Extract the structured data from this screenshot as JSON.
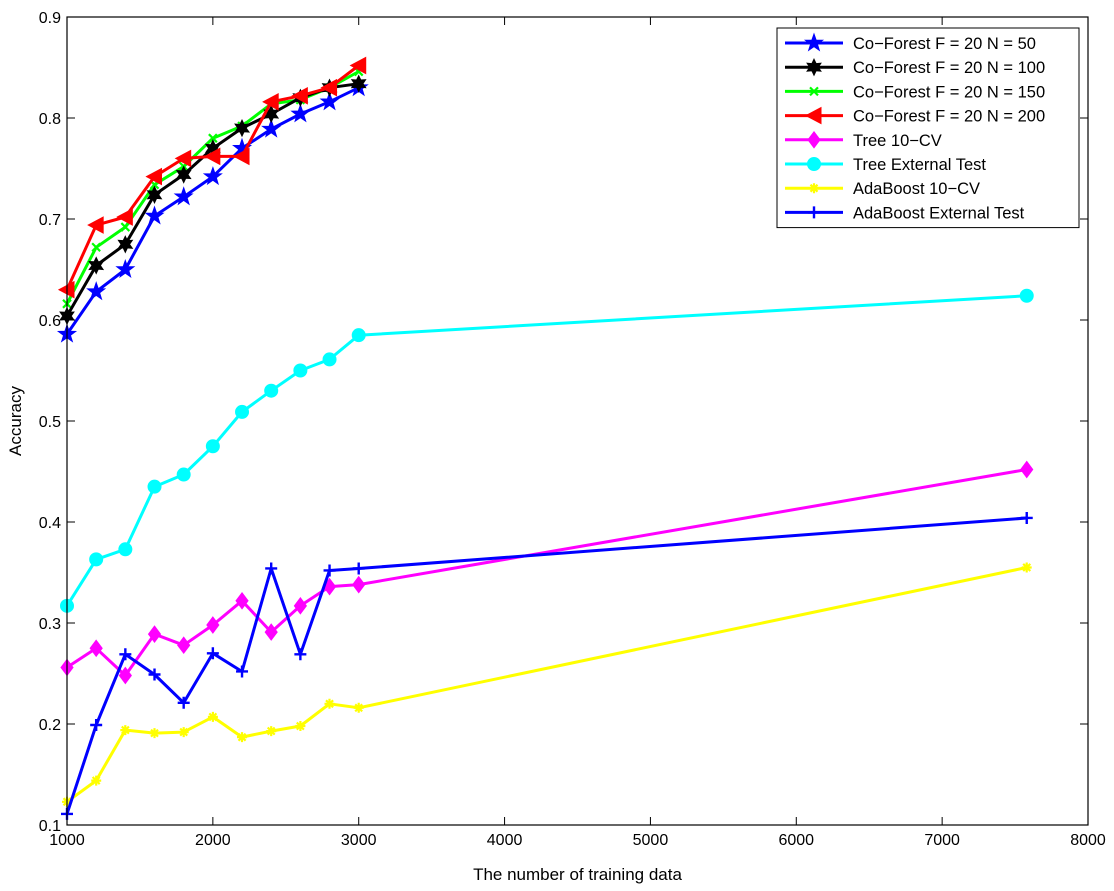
{
  "chart_data": {
    "type": "line",
    "title": "",
    "xlabel": "The number of training data",
    "ylabel": "Accuracy",
    "xlim": [
      1000,
      8000
    ],
    "ylim": [
      0.1,
      0.9
    ],
    "xticks": [
      1000,
      2000,
      3000,
      4000,
      5000,
      6000,
      7000,
      8000
    ],
    "yticks": [
      0.1,
      0.2,
      0.3,
      0.4,
      0.5,
      0.6,
      0.7,
      0.8,
      0.9
    ],
    "grid": false,
    "legend_position": "top-right",
    "series": [
      {
        "name": "Co−Forest F = 20 N = 50",
        "color": "#0000ff",
        "marker": "pentagram",
        "x": [
          1000,
          1200,
          1400,
          1600,
          1800,
          2000,
          2200,
          2400,
          2600,
          2800,
          3000
        ],
        "y": [
          0.586,
          0.628,
          0.65,
          0.703,
          0.722,
          0.742,
          0.77,
          0.789,
          0.804,
          0.816,
          0.83
        ]
      },
      {
        "name": "Co−Forest F = 20 N = 100",
        "color": "#000000",
        "marker": "hexagram",
        "x": [
          1000,
          1200,
          1400,
          1600,
          1800,
          2000,
          2200,
          2400,
          2600,
          2800,
          3000
        ],
        "y": [
          0.604,
          0.654,
          0.675,
          0.724,
          0.744,
          0.77,
          0.79,
          0.804,
          0.82,
          0.83,
          0.834
        ]
      },
      {
        "name": "Co−Forest F = 20 N = 150",
        "color": "#00ff00",
        "marker": "x",
        "x": [
          1000,
          1200,
          1400,
          1600,
          1800,
          2000,
          2200,
          2400,
          2600,
          2800,
          3000
        ],
        "y": [
          0.616,
          0.672,
          0.692,
          0.734,
          0.752,
          0.78,
          0.792,
          0.814,
          0.818,
          0.83,
          0.846
        ]
      },
      {
        "name": "Co−Forest F = 20 N = 200",
        "color": "#ff0000",
        "marker": "triangle-left",
        "x": [
          1000,
          1200,
          1400,
          1600,
          1800,
          2000,
          2200,
          2400,
          2600,
          2800,
          3000
        ],
        "y": [
          0.63,
          0.694,
          0.702,
          0.742,
          0.76,
          0.762,
          0.762,
          0.816,
          0.822,
          0.83,
          0.852
        ]
      },
      {
        "name": "Tree 10−CV",
        "color": "#ff00ff",
        "marker": "diamond",
        "x": [
          1000,
          1200,
          1400,
          1600,
          1800,
          2000,
          2200,
          2400,
          2600,
          2800,
          3000,
          7580
        ],
        "y": [
          0.256,
          0.275,
          0.248,
          0.289,
          0.278,
          0.298,
          0.322,
          0.291,
          0.317,
          0.336,
          0.338,
          0.452
        ]
      },
      {
        "name": "Tree External Test",
        "color": "#00ffff",
        "marker": "circle",
        "x": [
          1000,
          1200,
          1400,
          1600,
          1800,
          2000,
          2200,
          2400,
          2600,
          2800,
          3000,
          7580
        ],
        "y": [
          0.317,
          0.363,
          0.373,
          0.435,
          0.447,
          0.475,
          0.509,
          0.53,
          0.55,
          0.561,
          0.585,
          0.624
        ]
      },
      {
        "name": "AdaBoost 10−CV",
        "color": "#ffff00",
        "marker": "asterisk",
        "x": [
          1000,
          1200,
          1400,
          1600,
          1800,
          2000,
          2200,
          2400,
          2600,
          2800,
          3000,
          7580
        ],
        "y": [
          0.123,
          0.144,
          0.194,
          0.191,
          0.192,
          0.207,
          0.187,
          0.193,
          0.198,
          0.22,
          0.216,
          0.355
        ]
      },
      {
        "name": "AdaBoost External Test",
        "color": "#0000ff",
        "marker": "plus",
        "x": [
          1000,
          1200,
          1400,
          1600,
          1800,
          2000,
          2200,
          2400,
          2600,
          2800,
          3000,
          7580
        ],
        "y": [
          0.111,
          0.199,
          0.269,
          0.249,
          0.221,
          0.27,
          0.252,
          0.354,
          0.269,
          0.352,
          0.354,
          0.404
        ]
      }
    ]
  }
}
